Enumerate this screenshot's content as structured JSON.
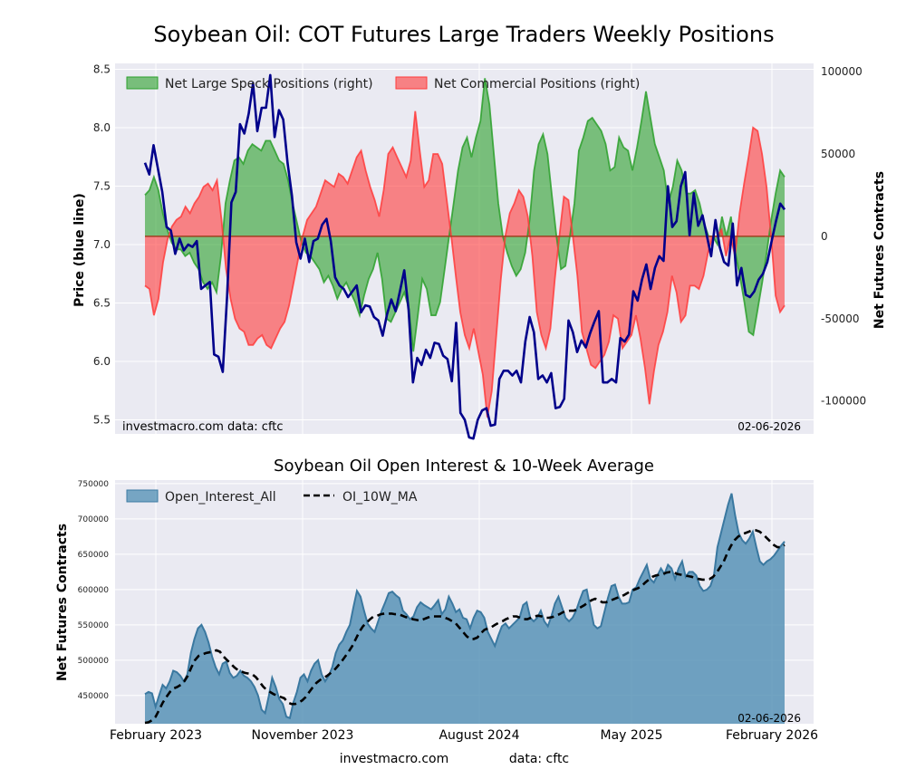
{
  "title": "Soybean Oil: COT Futures Large Traders Weekly Positions",
  "footer": {
    "site": "investmacro.com",
    "source": "data: cftc"
  },
  "colors": {
    "spec": "#2ca02c",
    "comm": "#ff3b3b",
    "price": "#00008b",
    "oi": "#4f8db3"
  },
  "chart_data": [
    {
      "type": "area",
      "ylabel_left": "Price (blue line)",
      "ylabel_right": "Net Futures Contracts",
      "ylim_left": [
        5.38,
        8.55
      ],
      "ylim_right": [
        -120000,
        105000
      ],
      "yticks_left": [
        "5.5",
        "6.0",
        "6.5",
        "7.0",
        "7.5",
        "8.0",
        "8.5"
      ],
      "yticks_right": [
        "-100000",
        "-50000",
        "0",
        "50000",
        "100000"
      ],
      "watermark": "investmacro.com   data: cftc",
      "date_label": "02-06-2026",
      "legend_position": "top-left",
      "series": [
        {
          "name": "Net Large Speck Positions (right)",
          "axis": "right",
          "values": [
            25000,
            28000,
            36000,
            28000,
            14000,
            4000,
            -4000,
            -8000,
            -8000,
            -12000,
            -10000,
            -16000,
            -20000,
            -28000,
            -32000,
            -28000,
            -34000,
            -12000,
            20000,
            34000,
            46000,
            48000,
            44000,
            52000,
            56000,
            54000,
            52000,
            58000,
            58000,
            52000,
            46000,
            44000,
            34000,
            20000,
            8000,
            -4000,
            -10000,
            -12000,
            -16000,
            -20000,
            -28000,
            -24000,
            -30000,
            -38000,
            -32000,
            -28000,
            -34000,
            -40000,
            -48000,
            -36000,
            -26000,
            -20000,
            -10000,
            -26000,
            -50000,
            -52000,
            -46000,
            -40000,
            -34000,
            -44000,
            -70000,
            -48000,
            -26000,
            -32000,
            -48000,
            -48000,
            -40000,
            -20000,
            0,
            20000,
            40000,
            54000,
            60000,
            48000,
            60000,
            70000,
            96000,
            80000,
            50000,
            20000,
            0,
            -10000,
            -18000,
            -24000,
            -20000,
            -10000,
            10000,
            40000,
            56000,
            62000,
            50000,
            24000,
            0,
            -20000,
            -18000,
            0,
            20000,
            52000,
            60000,
            70000,
            72000,
            68000,
            64000,
            56000,
            40000,
            42000,
            60000,
            54000,
            52000,
            40000,
            54000,
            70000,
            88000,
            72000,
            56000,
            48000,
            40000,
            20000,
            30000,
            46000,
            40000,
            26000,
            26000,
            28000,
            20000,
            8000,
            0,
            0,
            -5000,
            12000,
            0,
            12000,
            -10000,
            -24000,
            -40000,
            -58000,
            -60000,
            -44000,
            -28000,
            -10000,
            10000,
            26000,
            40000,
            36000
          ]
        },
        {
          "name": "Net Commercial Positions (right)",
          "axis": "right",
          "values": [
            -30000,
            -32000,
            -48000,
            -38000,
            -16000,
            -2000,
            6000,
            10000,
            12000,
            18000,
            14000,
            20000,
            24000,
            30000,
            32000,
            28000,
            34000,
            10000,
            -20000,
            -38000,
            -50000,
            -56000,
            -58000,
            -66000,
            -66000,
            -62000,
            -60000,
            -66000,
            -68000,
            -62000,
            -56000,
            -52000,
            -42000,
            -28000,
            -14000,
            0,
            10000,
            14000,
            18000,
            26000,
            34000,
            32000,
            30000,
            38000,
            36000,
            32000,
            40000,
            48000,
            52000,
            40000,
            30000,
            22000,
            12000,
            28000,
            50000,
            54000,
            48000,
            42000,
            36000,
            46000,
            76000,
            52000,
            30000,
            34000,
            50000,
            50000,
            44000,
            22000,
            0,
            -24000,
            -46000,
            -60000,
            -68000,
            -56000,
            -70000,
            -84000,
            -110000,
            -94000,
            -60000,
            -26000,
            0,
            14000,
            20000,
            28000,
            24000,
            12000,
            -12000,
            -46000,
            -60000,
            -68000,
            -56000,
            -26000,
            0,
            24000,
            22000,
            0,
            -24000,
            -58000,
            -68000,
            -78000,
            -80000,
            -76000,
            -72000,
            -64000,
            -48000,
            -50000,
            -68000,
            -64000,
            -60000,
            -48000,
            -62000,
            -80000,
            -102000,
            -82000,
            -66000,
            -58000,
            -46000,
            -24000,
            -34000,
            -52000,
            -48000,
            -30000,
            -30000,
            -32000,
            -24000,
            -10000,
            0,
            0,
            4000,
            -12000,
            0,
            -12000,
            14000,
            32000,
            48000,
            66000,
            64000,
            50000,
            30000,
            0,
            -36000,
            -46000,
            -42000
          ]
        },
        {
          "name": "Price",
          "axis": "left",
          "values": [
            7.7,
            7.6,
            7.85,
            7.65,
            7.45,
            7.15,
            7.12,
            6.92,
            7.05,
            6.95,
            7.0,
            6.98,
            7.03,
            6.62,
            6.65,
            6.68,
            6.06,
            6.04,
            5.91,
            6.55,
            7.36,
            7.45,
            8.03,
            7.95,
            8.12,
            8.38,
            7.97,
            8.17,
            8.17,
            8.45,
            7.92,
            8.15,
            8.07,
            7.7,
            7.42,
            7.02,
            6.88,
            7.05,
            6.85,
            7.03,
            7.05,
            7.17,
            7.22,
            7.03,
            6.72,
            6.65,
            6.62,
            6.55,
            6.6,
            6.65,
            6.42,
            6.48,
            6.47,
            6.38,
            6.35,
            6.22,
            6.4,
            6.53,
            6.43,
            6.6,
            6.78,
            6.44,
            5.82,
            6.03,
            5.97,
            6.1,
            6.03,
            6.16,
            6.15,
            6.05,
            6.02,
            5.83,
            6.33,
            5.56,
            5.5,
            5.35,
            5.34,
            5.5,
            5.58,
            5.6,
            5.45,
            5.46,
            5.85,
            5.92,
            5.92,
            5.88,
            5.92,
            5.82,
            6.17,
            6.38,
            6.25,
            5.85,
            5.88,
            5.82,
            5.9,
            5.6,
            5.61,
            5.68,
            6.35,
            6.25,
            6.08,
            6.18,
            6.12,
            6.24,
            6.34,
            6.43,
            5.82,
            5.82,
            5.85,
            5.82,
            6.2,
            6.17,
            6.23,
            6.6,
            6.52,
            6.7,
            6.83,
            6.62,
            6.8,
            6.9,
            6.86,
            7.5,
            7.15,
            7.2,
            7.5,
            7.62,
            7.08,
            7.44,
            7.16,
            7.25,
            7.08,
            6.9,
            7.21,
            6.98,
            6.85,
            6.82,
            7.18,
            6.65,
            6.8,
            6.57,
            6.55,
            6.6,
            6.7,
            6.75,
            6.85,
            7.03,
            7.2,
            7.35,
            7.3
          ]
        }
      ]
    },
    {
      "type": "area",
      "title": "Soybean Oil Open Interest & 10-Week Average",
      "ylabel": "Net Futures Contracts",
      "ylim": [
        410000,
        755000
      ],
      "yticks": [
        "450000",
        "500000",
        "550000",
        "600000",
        "650000",
        "700000",
        "750000"
      ],
      "xticks": [
        "February 2023",
        "November 2023",
        "August 2024",
        "May 2025",
        "February 2026"
      ],
      "date_label": "02-06-2026",
      "legend_position": "top-left",
      "series": [
        {
          "name": "Open_Interest_All",
          "type": "area",
          "values": [
            452000,
            455000,
            453000,
            434000,
            450000,
            465000,
            460000,
            470000,
            485000,
            483000,
            478000,
            470000,
            480000,
            510000,
            530000,
            545000,
            550000,
            540000,
            525000,
            505000,
            490000,
            480000,
            495000,
            498000,
            482000,
            475000,
            478000,
            485000,
            478000,
            475000,
            470000,
            462000,
            450000,
            430000,
            425000,
            448000,
            475000,
            462000,
            445000,
            438000,
            420000,
            418000,
            440000,
            455000,
            475000,
            480000,
            470000,
            485000,
            495000,
            500000,
            480000,
            470000,
            478000,
            490000,
            510000,
            522000,
            528000,
            540000,
            550000,
            575000,
            598000,
            590000,
            570000,
            552000,
            545000,
            540000,
            555000,
            570000,
            582000,
            595000,
            597000,
            592000,
            588000,
            570000,
            565000,
            558000,
            562000,
            575000,
            582000,
            578000,
            575000,
            572000,
            578000,
            585000,
            565000,
            572000,
            590000,
            580000,
            568000,
            572000,
            560000,
            558000,
            545000,
            560000,
            570000,
            568000,
            560000,
            540000,
            530000,
            520000,
            535000,
            548000,
            552000,
            545000,
            550000,
            555000,
            560000,
            578000,
            582000,
            560000,
            555000,
            560000,
            570000,
            555000,
            548000,
            562000,
            580000,
            590000,
            575000,
            560000,
            555000,
            560000,
            570000,
            585000,
            598000,
            600000,
            575000,
            550000,
            545000,
            548000,
            568000,
            588000,
            605000,
            607000,
            590000,
            580000,
            580000,
            582000,
            600000,
            603000,
            615000,
            625000,
            635000,
            615000,
            610000,
            620000,
            630000,
            622000,
            635000,
            630000,
            615000,
            630000,
            640000,
            618000,
            625000,
            625000,
            620000,
            605000,
            598000,
            600000,
            605000,
            620000,
            660000,
            680000,
            700000,
            720000,
            736000,
            705000,
            680000,
            670000,
            665000,
            672000,
            682000,
            660000,
            640000,
            635000,
            640000,
            643000,
            648000,
            655000,
            662000,
            668000
          ]
        },
        {
          "name": "OI_10W_MA",
          "type": "line",
          "values": [
            410000,
            412000,
            415000,
            420000,
            430000,
            440000,
            448000,
            455000,
            460000,
            462000,
            465000,
            470000,
            478000,
            490000,
            500000,
            506000,
            508000,
            510000,
            511000,
            512000,
            514000,
            512000,
            505000,
            500000,
            495000,
            490000,
            486000,
            484000,
            482000,
            481000,
            480000,
            476000,
            470000,
            463000,
            458000,
            455000,
            452000,
            450000,
            448000,
            446000,
            440000,
            438000,
            438000,
            440000,
            443000,
            448000,
            455000,
            462000,
            468000,
            472000,
            475000,
            478000,
            482000,
            486000,
            492000,
            498000,
            505000,
            512000,
            520000,
            530000,
            540000,
            548000,
            553000,
            558000,
            562000,
            563000,
            565000,
            566000,
            566000,
            566000,
            565000,
            565000,
            563000,
            561000,
            560000,
            558000,
            557000,
            556000,
            558000,
            560000,
            562000,
            562000,
            562000,
            562000,
            560000,
            558000,
            555000,
            552000,
            546000,
            540000,
            534000,
            530000,
            530000,
            532000,
            538000,
            543000,
            545000,
            547000,
            550000,
            553000,
            555000,
            558000,
            560000,
            562000,
            562000,
            560000,
            558000,
            558000,
            560000,
            562000,
            563000,
            562000,
            560000,
            560000,
            561000,
            563000,
            565000,
            568000,
            569000,
            570000,
            570000,
            572000,
            575000,
            578000,
            582000,
            585000,
            587000,
            585000,
            582000,
            582000,
            584000,
            586000,
            588000,
            590000,
            592000,
            595000,
            598000,
            600000,
            602000,
            605000,
            610000,
            614000,
            618000,
            620000,
            621000,
            622000,
            624000,
            625000,
            624000,
            622000,
            621000,
            620000,
            619000,
            618000,
            616000,
            615000,
            614000,
            614000,
            615000,
            618000,
            624000,
            632000,
            640000,
            652000,
            662000,
            670000,
            675000,
            678000,
            680000,
            682000,
            684000,
            684000,
            682000,
            678000,
            673000,
            668000,
            663000,
            660000,
            660000,
            663000
          ]
        }
      ]
    }
  ]
}
